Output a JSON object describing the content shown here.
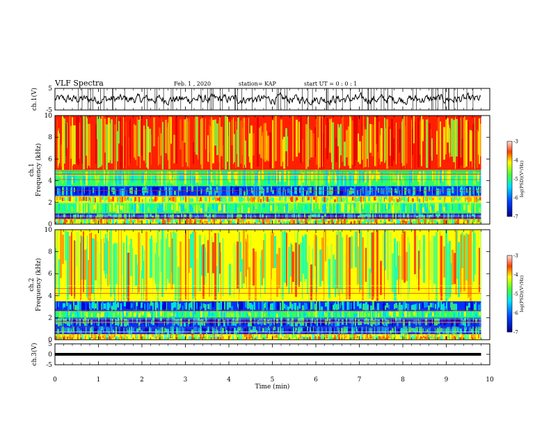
{
  "header": {
    "title": "VLF Spectra",
    "date": "Feb. 1 , 2020",
    "station": "station= KAP",
    "start": "start  UT =   0 : 0  : 1"
  },
  "chart_data": [
    {
      "type": "line",
      "panel": "ch1-waveform",
      "ylabel": "ch.1(V)",
      "ylim": [
        -5,
        5
      ],
      "yticks": [
        "5",
        "-5"
      ],
      "color": "#000000"
    },
    {
      "type": "heatmap",
      "panel": "ch1-spectrogram",
      "ylabel": "Frequency (kHz)",
      "ylabel_channel": "ch.1",
      "ylim": [
        0,
        10
      ],
      "yticks": [
        "0",
        "2",
        "4",
        "6",
        "8",
        "10"
      ],
      "colorbar": {
        "label": "log(PSD)(V²/Hz)",
        "range": [
          -7,
          -3
        ],
        "ticks": [
          "-3",
          "-4",
          "-5",
          "-6",
          "-7"
        ]
      },
      "bands_khz": [
        {
          "from": 0.0,
          "to": 0.5,
          "level": "mixed"
        },
        {
          "from": 0.5,
          "to": 1.0,
          "level": "low"
        },
        {
          "from": 1.0,
          "to": 2.0,
          "level": "medium"
        },
        {
          "from": 2.0,
          "to": 2.6,
          "level": "medium-high"
        },
        {
          "from": 2.6,
          "to": 3.5,
          "level": "low"
        },
        {
          "from": 3.5,
          "to": 5.0,
          "level": "medium"
        },
        {
          "from": 5.0,
          "to": 10.0,
          "level": "high"
        }
      ]
    },
    {
      "type": "heatmap",
      "panel": "ch2-spectrogram",
      "ylabel": "Frequency (kHz)",
      "ylabel_channel": "ch.2",
      "ylim": [
        0,
        10
      ],
      "yticks": [
        "0",
        "2",
        "4",
        "6",
        "8",
        "10"
      ],
      "colorbar": {
        "label": "log(PSD)(V²/Hz)",
        "range": [
          -7,
          -3
        ],
        "ticks": [
          "-3",
          "-4",
          "-5",
          "-6",
          "-7"
        ]
      },
      "bands_khz": [
        {
          "from": 0.0,
          "to": 0.5,
          "level": "mixed"
        },
        {
          "from": 0.5,
          "to": 1.2,
          "level": "low"
        },
        {
          "from": 1.2,
          "to": 2.0,
          "level": "low"
        },
        {
          "from": 2.0,
          "to": 2.6,
          "level": "medium"
        },
        {
          "from": 2.6,
          "to": 3.5,
          "level": "low"
        },
        {
          "from": 3.5,
          "to": 10.0,
          "level": "medium-high"
        }
      ]
    },
    {
      "type": "line",
      "panel": "ch3-waveform",
      "ylabel": "ch.3(V)",
      "ylim": [
        -5,
        5
      ],
      "yticks": [
        "5",
        "0",
        "-5"
      ],
      "value": 0,
      "color": "#000000"
    }
  ],
  "xaxis": {
    "label": "Time (min)",
    "range": [
      0,
      10
    ],
    "ticks": [
      "0",
      "1",
      "2",
      "3",
      "4",
      "5",
      "6",
      "7",
      "8",
      "9",
      "10"
    ],
    "data_end": 9.8
  }
}
